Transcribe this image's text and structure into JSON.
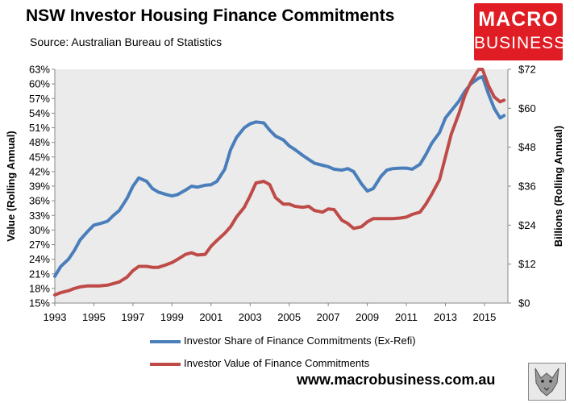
{
  "header": {
    "title": "NSW Investor Housing Finance Commitments",
    "subtitle": "Source: Australian Bureau of Statistics"
  },
  "logo": {
    "line1": "MACRO",
    "line2": "BUSINESS"
  },
  "footer": {
    "url": "www.macrobusiness.com.au"
  },
  "colors": {
    "plot_bg": "#ebebeb",
    "share": "#4a7ebb",
    "value": "#be4b48",
    "logo": "#e01d24"
  },
  "chart_data": {
    "type": "line",
    "xlabel": "",
    "ylabel_left": "Value (Rolling Annual)",
    "ylabel_right": "Billions (Rolling Annual)",
    "x_ticks": [
      "1993",
      "1995",
      "1997",
      "1999",
      "2001",
      "2003",
      "2005",
      "2007",
      "2009",
      "2011",
      "2013",
      "2015"
    ],
    "y_left_ticks": [
      "15%",
      "18%",
      "21%",
      "24%",
      "27%",
      "30%",
      "33%",
      "36%",
      "39%",
      "42%",
      "45%",
      "48%",
      "51%",
      "54%",
      "57%",
      "60%",
      "63%"
    ],
    "y_right_ticks": [
      "$0",
      "$12",
      "$24",
      "$36",
      "$48",
      "$60",
      "$72"
    ],
    "xlim": [
      1993,
      2016.2
    ],
    "ylim_left": [
      15,
      63
    ],
    "ylim_right": [
      0,
      72
    ],
    "grid": false,
    "legend_position": "bottom",
    "series": [
      {
        "name": "Investor Share of Finance Commitments (Ex-Refi)",
        "axis": "left",
        "x": [
          1993,
          1993.3,
          1993.7,
          1994,
          1994.3,
          1994.7,
          1995,
          1995.3,
          1995.7,
          1996,
          1996.3,
          1996.7,
          1997,
          1997.3,
          1997.7,
          1998,
          1998.3,
          1998.7,
          1999,
          1999.3,
          1999.7,
          2000,
          2000.3,
          2000.7,
          2001,
          2001.3,
          2001.7,
          2002,
          2002.3,
          2002.7,
          2003,
          2003.3,
          2003.7,
          2004,
          2004.3,
          2004.7,
          2005,
          2005.3,
          2005.7,
          2006,
          2006.3,
          2006.7,
          2007,
          2007.3,
          2007.7,
          2008,
          2008.3,
          2008.7,
          2009,
          2009.3,
          2009.7,
          2010,
          2010.3,
          2010.7,
          2011,
          2011.3,
          2011.7,
          2012,
          2012.3,
          2012.7,
          2013,
          2013.3,
          2013.7,
          2014,
          2014.3,
          2014.7,
          2014.9,
          2015.2,
          2015.5,
          2015.8,
          2016
        ],
        "values": [
          20.5,
          22.5,
          24,
          25.8,
          28,
          29.8,
          31,
          31.3,
          31.8,
          33,
          34,
          36.5,
          39,
          40.7,
          40,
          38.5,
          37.8,
          37.3,
          37,
          37.3,
          38.2,
          39,
          38.8,
          39.2,
          39.3,
          40,
          42.5,
          46.5,
          49,
          51,
          51.8,
          52.2,
          52,
          50.5,
          49.3,
          48.5,
          47.3,
          46.5,
          45.3,
          44.5,
          43.7,
          43.3,
          43,
          42.5,
          42.3,
          42.6,
          42,
          39.5,
          38,
          38.5,
          41,
          42.3,
          42.6,
          42.7,
          42.7,
          42.5,
          43.5,
          45.5,
          47.8,
          50,
          53,
          54.5,
          56.5,
          58.5,
          60,
          61.2,
          61.5,
          58,
          55,
          53,
          53.5
        ]
      },
      {
        "name": "Investor Value of Finance Commitments",
        "axis": "right",
        "x": [
          1993,
          1993.3,
          1993.7,
          1994,
          1994.3,
          1994.7,
          1995,
          1995.3,
          1995.7,
          1996,
          1996.3,
          1996.7,
          1997,
          1997.3,
          1997.7,
          1998,
          1998.3,
          1998.7,
          1999,
          1999.3,
          1999.7,
          2000,
          2000.3,
          2000.7,
          2001,
          2001.3,
          2001.7,
          2002,
          2002.3,
          2002.7,
          2003,
          2003.3,
          2003.7,
          2004,
          2004.3,
          2004.7,
          2005,
          2005.3,
          2005.7,
          2006,
          2006.3,
          2006.7,
          2007,
          2007.3,
          2007.7,
          2008,
          2008.3,
          2008.7,
          2009,
          2009.3,
          2009.7,
          2010,
          2010.3,
          2010.7,
          2011,
          2011.3,
          2011.7,
          2012,
          2012.3,
          2012.7,
          2013,
          2013.3,
          2013.7,
          2014,
          2014.3,
          2014.7,
          2014.9,
          2015.2,
          2015.5,
          2015.8,
          2016
        ],
        "values": [
          2.5,
          3.2,
          3.8,
          4.5,
          5,
          5.3,
          5.3,
          5.3,
          5.5,
          6,
          6.5,
          8,
          10,
          11.3,
          11.3,
          11,
          11,
          11.8,
          12.5,
          13.5,
          15,
          15.5,
          14.8,
          15,
          17.5,
          19.3,
          21.5,
          23.5,
          26.5,
          29.5,
          33,
          37,
          37.5,
          36.5,
          32.5,
          30.5,
          30.5,
          29.8,
          29.5,
          29.8,
          28.5,
          28,
          29,
          28.8,
          25.5,
          24.5,
          23,
          23.5,
          25,
          26,
          26,
          26,
          26,
          26.2,
          26.5,
          27.3,
          28,
          30.5,
          33.5,
          38,
          45,
          52,
          58.5,
          64,
          68,
          72,
          72,
          67,
          63.5,
          62,
          62.5
        ]
      }
    ]
  }
}
